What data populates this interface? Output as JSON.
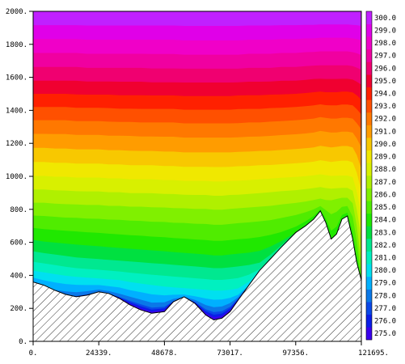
{
  "chart_data": {
    "type": "heatmap",
    "subtype": "filled-contour cross-section",
    "title": "",
    "xlabel": "",
    "ylabel": "",
    "xlim": [
      0,
      121695
    ],
    "ylim": [
      0,
      2000
    ],
    "x_ticks": [
      "0.",
      "24339.",
      "48678.",
      "73017.",
      "97356.",
      "121695."
    ],
    "x_tick_values": [
      0,
      24339,
      48678,
      73017,
      97356,
      121695
    ],
    "y_ticks": [
      "0.",
      "200.",
      "400.",
      "600.",
      "800.",
      "1000.",
      "1200.",
      "1400.",
      "1600.",
      "1800.",
      "2000."
    ],
    "y_tick_values": [
      0,
      200,
      400,
      600,
      800,
      1000,
      1200,
      1400,
      1600,
      1800,
      2000
    ],
    "grid": false,
    "colorbar": {
      "labels": [
        "275.0",
        "276.0",
        "277.0",
        "278.0",
        "279.0",
        "280.0",
        "281.0",
        "282.0",
        "283.0",
        "284.0",
        "285.0",
        "286.0",
        "287.0",
        "288.0",
        "289.0",
        "290.0",
        "291.0",
        "292.0",
        "293.0",
        "294.0",
        "295.0",
        "296.0",
        "297.0",
        "298.0",
        "299.0",
        "300.0"
      ],
      "min": 274.5,
      "max": 300.5,
      "colors": [
        "#3a00ee",
        "#0a1ee8",
        "#0a48e8",
        "#0a78e8",
        "#00b0ff",
        "#00e0f0",
        "#00f0c0",
        "#00e890",
        "#00e040",
        "#20e800",
        "#50ec00",
        "#80f000",
        "#b0f000",
        "#d8f000",
        "#f0e800",
        "#f8c800",
        "#ff9c00",
        "#ff7800",
        "#ff5000",
        "#ff2000",
        "#f00030",
        "#f00070",
        "#f000a0",
        "#f000c8",
        "#e000e8",
        "#c020ff"
      ]
    },
    "terrain": {
      "x": [
        0,
        4000,
        8000,
        12000,
        16000,
        20000,
        24339,
        28000,
        32000,
        36000,
        40000,
        44000,
        48678,
        52000,
        56000,
        60000,
        64000,
        67000,
        70000,
        73017,
        76000,
        80000,
        84000,
        88000,
        92000,
        97356,
        101000,
        104000,
        106500,
        108500,
        110500,
        112500,
        114500,
        116500,
        118500,
        120000,
        121695
      ],
      "elevation": [
        360,
        340,
        310,
        285,
        270,
        280,
        300,
        290,
        260,
        220,
        190,
        170,
        180,
        240,
        270,
        230,
        160,
        130,
        140,
        180,
        250,
        340,
        430,
        500,
        570,
        660,
        700,
        740,
        790,
        720,
        620,
        650,
        740,
        760,
        620,
        480,
        370
      ]
    },
    "isotherm_heights": [
      {
        "value": 274.5,
        "y": [
          360,
          340,
          310,
          285,
          270,
          280,
          300,
          290,
          260,
          220,
          190,
          170,
          180,
          240,
          270,
          230,
          160,
          130,
          140,
          180,
          250,
          340,
          430,
          500,
          570,
          660,
          700,
          740,
          790,
          720,
          620,
          650,
          740,
          760,
          620,
          480,
          370
        ]
      },
      {
        "value": 278.0,
        "y": [
          345,
          310,
          290,
          280,
          275,
          285,
          300,
          290,
          270,
          250,
          230,
          210,
          215,
          245,
          265,
          240,
          200,
          185,
          190,
          215,
          260,
          340,
          430,
          500,
          570,
          660,
          700,
          740,
          790,
          720,
          620,
          650,
          740,
          760,
          620,
          480,
          370
        ]
      },
      {
        "value": 280.0,
        "y": [
          400,
          390,
          380,
          370,
          365,
          360,
          355,
          350,
          345,
          330,
          320,
          310,
          300,
          295,
          290,
          285,
          280,
          275,
          275,
          280,
          290,
          340,
          430,
          500,
          570,
          660,
          700,
          740,
          790,
          720,
          620,
          650,
          740,
          760,
          620,
          480,
          370
        ]
      },
      {
        "value": 282.0,
        "y": [
          510,
          500,
          490,
          480,
          470,
          465,
          460,
          455,
          450,
          445,
          440,
          435,
          430,
          425,
          420,
          415,
          410,
          405,
          405,
          410,
          415,
          425,
          440,
          500,
          570,
          660,
          700,
          740,
          790,
          720,
          620,
          650,
          740,
          760,
          620,
          480,
          370
        ]
      },
      {
        "value": 284.0,
        "y": [
          650,
          640,
          635,
          630,
          625,
          620,
          615,
          610,
          605,
          600,
          595,
          590,
          585,
          580,
          575,
          570,
          565,
          560,
          560,
          565,
          570,
          575,
          585,
          600,
          620,
          660,
          700,
          740,
          790,
          720,
          620,
          650,
          740,
          760,
          620,
          480,
          370
        ]
      },
      {
        "value": 286.0,
        "y": [
          800,
          800,
          795,
          790,
          790,
          785,
          785,
          780,
          780,
          775,
          775,
          770,
          770,
          765,
          765,
          760,
          760,
          755,
          755,
          760,
          765,
          770,
          775,
          780,
          790,
          800,
          810,
          820,
          830,
          820,
          820,
          830,
          840,
          840,
          800,
          650,
          400
        ]
      },
      {
        "value": 288.0,
        "y": [
          960,
          960,
          955,
          955,
          950,
          950,
          950,
          945,
          945,
          940,
          940,
          940,
          935,
          935,
          930,
          930,
          930,
          925,
          925,
          930,
          930,
          935,
          940,
          945,
          950,
          955,
          960,
          965,
          970,
          965,
          960,
          960,
          960,
          960,
          950,
          850,
          700
        ]
      },
      {
        "value": 290.0,
        "y": [
          1130,
          1130,
          1125,
          1125,
          1120,
          1120,
          1120,
          1115,
          1115,
          1110,
          1110,
          1110,
          1105,
          1105,
          1100,
          1100,
          1100,
          1100,
          1100,
          1100,
          1105,
          1105,
          1110,
          1110,
          1115,
          1120,
          1125,
          1130,
          1140,
          1135,
          1130,
          1135,
          1140,
          1140,
          1130,
          1080,
          980
        ]
      },
      {
        "value": 292.0,
        "y": [
          1300,
          1300,
          1300,
          1300,
          1295,
          1295,
          1295,
          1290,
          1290,
          1290,
          1285,
          1285,
          1285,
          1285,
          1280,
          1280,
          1280,
          1280,
          1280,
          1280,
          1280,
          1285,
          1285,
          1290,
          1295,
          1300,
          1305,
          1310,
          1320,
          1315,
          1310,
          1310,
          1315,
          1315,
          1310,
          1280,
          1240
        ]
      },
      {
        "value": 294.0,
        "y": [
          1460,
          1460,
          1460,
          1460,
          1455,
          1455,
          1455,
          1455,
          1450,
          1450,
          1450,
          1450,
          1450,
          1450,
          1445,
          1445,
          1445,
          1445,
          1445,
          1445,
          1450,
          1450,
          1450,
          1455,
          1455,
          1460,
          1465,
          1470,
          1475,
          1470,
          1470,
          1470,
          1475,
          1475,
          1470,
          1450,
          1420
        ]
      },
      {
        "value": 296.0,
        "y": [
          1620,
          1620,
          1620,
          1620,
          1620,
          1615,
          1615,
          1615,
          1615,
          1615,
          1615,
          1610,
          1610,
          1610,
          1610,
          1610,
          1610,
          1610,
          1610,
          1610,
          1610,
          1615,
          1615,
          1615,
          1620,
          1620,
          1625,
          1630,
          1630,
          1630,
          1630,
          1630,
          1630,
          1630,
          1625,
          1615,
          1600
        ]
      },
      {
        "value": 298.0,
        "y": [
          1790,
          1790,
          1790,
          1790,
          1790,
          1785,
          1785,
          1785,
          1785,
          1785,
          1785,
          1785,
          1785,
          1785,
          1780,
          1780,
          1780,
          1780,
          1780,
          1780,
          1780,
          1785,
          1785,
          1785,
          1790,
          1790,
          1795,
          1795,
          1800,
          1800,
          1800,
          1800,
          1800,
          1800,
          1795,
          1790,
          1780
        ]
      },
      {
        "value": 300.5,
        "y": [
          2000,
          2000,
          2000,
          2000,
          2000,
          2000,
          2000,
          2000,
          2000,
          2000,
          2000,
          2000,
          2000,
          2000,
          2000,
          2000,
          2000,
          2000,
          2000,
          2000,
          2000,
          2000,
          2000,
          2000,
          2000,
          2000,
          2000,
          2000,
          2000,
          2000,
          2000,
          2000,
          2000,
          2000,
          2000,
          2000,
          2000
        ]
      }
    ]
  }
}
